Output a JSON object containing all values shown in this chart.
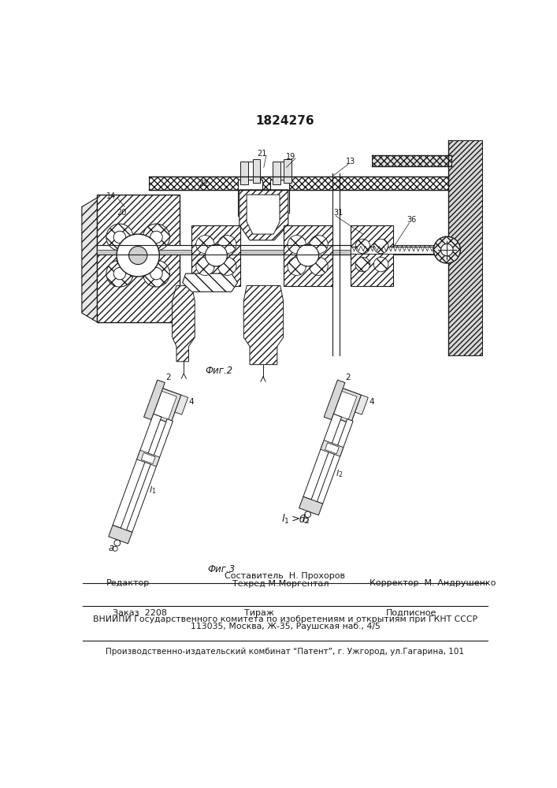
{
  "patent_number": "1824276",
  "fig2_caption": "Фиг.2",
  "fig3_caption": "Фиг.3",
  "editor_label": "Редактор",
  "composer_label": "Составитель  Н. Прохоров",
  "techred_label": "Техред М.Моргентал",
  "corrector_label": "Корректор  М. Андрушенко",
  "order_label": "Заказ  2208",
  "tirazh_label": "Тираж",
  "podpisnoe_label": "Подписное",
  "vniip_line1": "ВНИИПИ Государственного комитета по изобретениям и открытиям при ГКНТ СССР",
  "vniip_line2": "113035, Москва, Ж-35, Раушская наб., 4/5",
  "proizv_line": "Производственно-издательский комбинат “Патент”, г. Ужгород, ул.Гагарина, 101",
  "bg_color": "#ffffff",
  "text_color": "#000000"
}
